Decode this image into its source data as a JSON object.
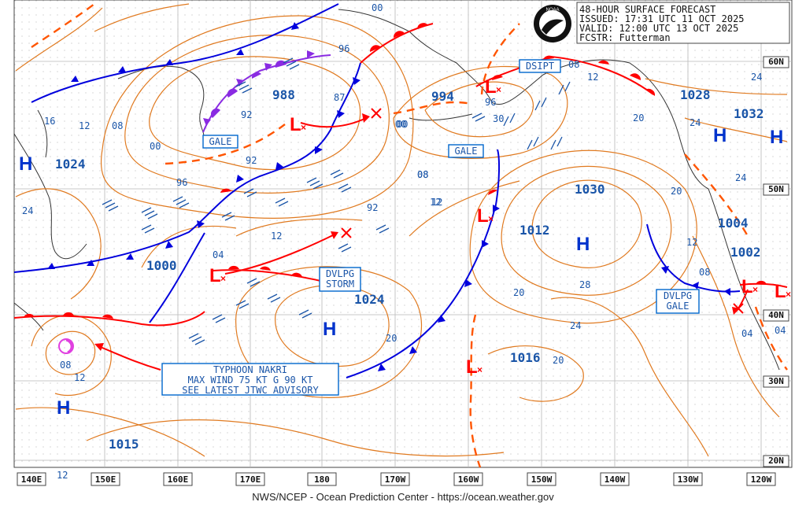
{
  "header": {
    "title": "48-HOUR SURFACE FORECAST",
    "issued": "ISSUED: 17:31 UTC 11 OCT 2025",
    "valid": "VALID:  12:00 UTC 13 OCT 2025",
    "forecaster": "FCSTR:  Futterman",
    "logo_text": "NOAA"
  },
  "footer": "NWS/NCEP - Ocean Prediction Center - https://ocean.weather.gov",
  "lon_labels": [
    "140E",
    "150E",
    "160E",
    "170E",
    "180",
    "170W",
    "160W",
    "150W",
    "140W",
    "130W",
    "120W"
  ],
  "lat_labels": [
    "60N",
    "50N",
    "40N",
    "30N",
    "20N"
  ],
  "boxes": [
    {
      "id": "gale-1",
      "lines": [
        "GALE"
      ]
    },
    {
      "id": "gale-2",
      "lines": [
        "GALE"
      ]
    },
    {
      "id": "dsipt",
      "lines": [
        "DSIPT"
      ]
    },
    {
      "id": "dvlpg-storm",
      "lines": [
        "DVLPG",
        "STORM"
      ]
    },
    {
      "id": "dvlpg-gale",
      "lines": [
        "DVLPG",
        "GALE"
      ]
    },
    {
      "id": "typhoon",
      "lines": [
        "TYPHOON NAKRI",
        "MAX WIND 75 KT G 90 KT",
        "SEE LATEST JTWC ADVISORY"
      ]
    }
  ],
  "pressure_centers": [
    {
      "type": "H",
      "value": "1024"
    },
    {
      "type": "L",
      "value": "988"
    },
    {
      "type": "L",
      "value": "994"
    },
    {
      "type": "L",
      "value": "1000"
    },
    {
      "type": "H",
      "value": "1024"
    },
    {
      "type": "H",
      "value": "1030"
    },
    {
      "type": "L",
      "value": "1012"
    },
    {
      "type": "L",
      "value": "1016"
    },
    {
      "type": "H",
      "value": "1028"
    },
    {
      "type": "H",
      "value": "1032"
    },
    {
      "type": "L",
      "value": "1004"
    },
    {
      "type": "L",
      "value": "1002"
    },
    {
      "type": "H",
      "value": "1015"
    }
  ],
  "isobar_labels": [
    "00",
    "96",
    "87",
    "92",
    "92",
    "00",
    "16",
    "12",
    "08",
    "00",
    "96",
    "24",
    "08",
    "12",
    "04",
    "92",
    "12",
    "20",
    "20",
    "24",
    "28",
    "08",
    "12",
    "20",
    "20",
    "24",
    "12",
    "08",
    "04",
    "04",
    "12",
    "12",
    "08",
    "24",
    "20",
    "24",
    "30",
    "96",
    "00",
    "08",
    "12"
  ],
  "colors": {
    "warm": "#ff0000",
    "cold": "#0000dd",
    "occluded": "#8a2be2",
    "isobar": "#e07a20",
    "label_box": "#0066cc",
    "text": "#1a55a8",
    "grid": "#b0b0b0",
    "land": "#333333"
  }
}
